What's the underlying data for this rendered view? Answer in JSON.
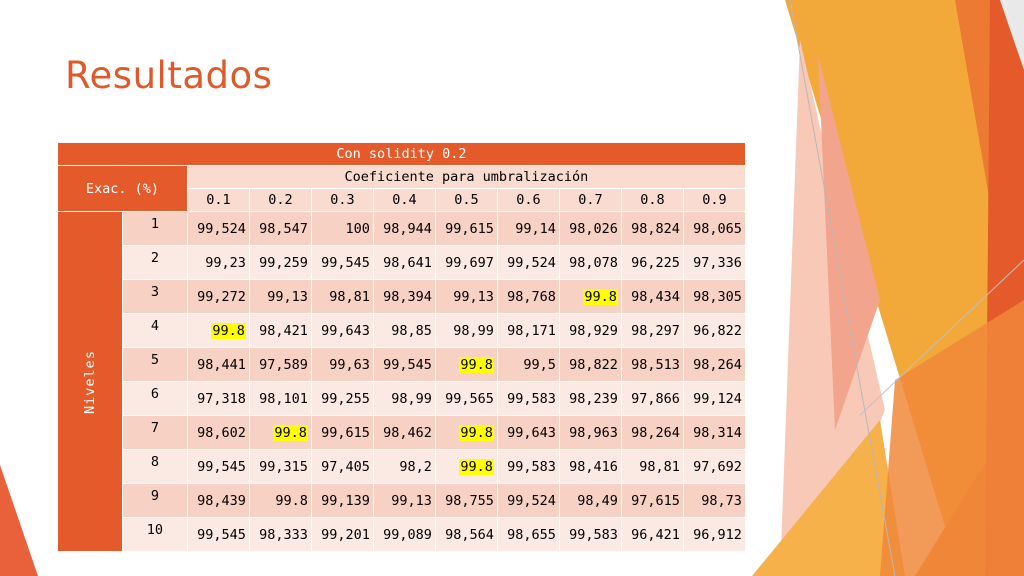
{
  "slide": {
    "title": "Resultados"
  },
  "table": {
    "title": "Con solidity 0.2",
    "corner_label": "Exac. (%)",
    "group_header": "Coeficiente para umbralización",
    "row_group_label": "Niveles",
    "columns": [
      "0.1",
      "0.2",
      "0.3",
      "0.4",
      "0.5",
      "0.6",
      "0.7",
      "0.8",
      "0.9"
    ],
    "rows": [
      {
        "level": "1",
        "values": [
          "99,524",
          "98,547",
          "100",
          "98,944",
          "99,615",
          "99,14",
          "98,026",
          "98,824",
          "98,065"
        ]
      },
      {
        "level": "2",
        "values": [
          "99,23",
          "99,259",
          "99,545",
          "98,641",
          "99,697",
          "99,524",
          "98,078",
          "96,225",
          "97,336"
        ]
      },
      {
        "level": "3",
        "values": [
          "99,272",
          "99,13",
          "98,81",
          "98,394",
          "99,13",
          "98,768",
          "99.8",
          "98,434",
          "98,305"
        ]
      },
      {
        "level": "4",
        "values": [
          "99.8",
          "98,421",
          "99,643",
          "98,85",
          "98,99",
          "98,171",
          "98,929",
          "98,297",
          "96,822"
        ]
      },
      {
        "level": "5",
        "values": [
          "98,441",
          "97,589",
          "99,63",
          "99,545",
          "99.8",
          "99,5",
          "98,822",
          "98,513",
          "98,264"
        ]
      },
      {
        "level": "6",
        "values": [
          "97,318",
          "98,101",
          "99,255",
          "98,99",
          "99,565",
          "99,583",
          "98,239",
          "97,866",
          "99,124"
        ]
      },
      {
        "level": "7",
        "values": [
          "98,602",
          "99.8",
          "99,615",
          "98,462",
          "99.8",
          "99,643",
          "98,963",
          "98,264",
          "98,314"
        ]
      },
      {
        "level": "8",
        "values": [
          "99,545",
          "99,315",
          "97,405",
          "98,2",
          "99.8",
          "99,583",
          "98,416",
          "98,81",
          "97,692"
        ]
      },
      {
        "level": "9",
        "values": [
          "98,439",
          "99.8",
          "99,139",
          "99,13",
          "98,755",
          "99,524",
          "98,49",
          "97,615",
          "98,73"
        ]
      },
      {
        "level": "10",
        "values": [
          "99,545",
          "98,333",
          "99,201",
          "99,089",
          "98,564",
          "98,655",
          "99,583",
          "96,421",
          "96,912"
        ]
      }
    ],
    "highlighted_cells": [
      [
        2,
        6
      ],
      [
        3,
        0
      ],
      [
        4,
        4
      ],
      [
        6,
        1
      ],
      [
        6,
        4
      ],
      [
        7,
        4
      ]
    ],
    "highlight_color": "#ffff00"
  },
  "theme": {
    "accent": "#e55a2b",
    "header_light": "#f9dbd0",
    "row_odd": "#f7d1c4",
    "row_even": "#fbe9e3"
  }
}
